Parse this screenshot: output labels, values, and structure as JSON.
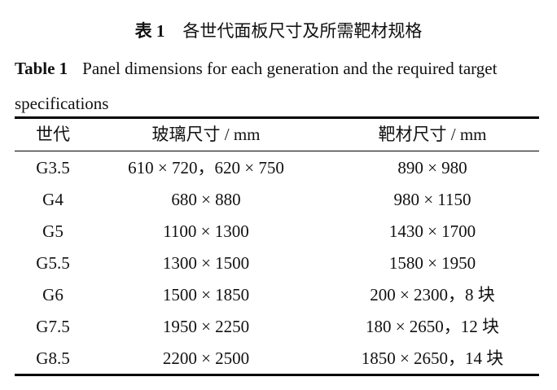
{
  "caption_cn": {
    "label": "表 1",
    "text": "各世代面板尺寸及所需靶材规格"
  },
  "caption_en": {
    "label": "Table 1",
    "text": "Panel dimensions for each generation and the required target specifications"
  },
  "table": {
    "headers": [
      "世代",
      "玻璃尺寸  / mm",
      "靶材尺寸  / mm"
    ],
    "rows": [
      [
        "G3.5",
        "610 × 720，620 × 750",
        "890 × 980"
      ],
      [
        "G4",
        "680 × 880",
        "980 × 1150"
      ],
      [
        "G5",
        "1100 × 1300",
        "1430 × 1700"
      ],
      [
        "G5.5",
        "1300 × 1500",
        "1580 × 1950"
      ],
      [
        "G6",
        "1500 × 1850",
        "200 × 2300，8 块"
      ],
      [
        "G7.5",
        "1950 × 2250",
        "180 × 2650，12 块"
      ],
      [
        "G8.5",
        "2200 × 2500",
        "1850 × 2650，14 块"
      ]
    ]
  }
}
